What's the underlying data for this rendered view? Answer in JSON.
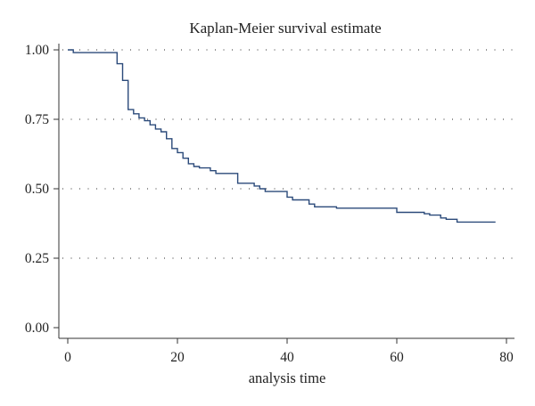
{
  "chart_data": {
    "type": "line",
    "title": "Kaplan-Meier survival estimate",
    "xlabel": "analysis time",
    "ylabel": "",
    "xlim": [
      0,
      80
    ],
    "ylim": [
      0,
      1
    ],
    "x_ticks": [
      0,
      20,
      40,
      60,
      80
    ],
    "y_ticks": [
      0,
      0.25,
      0.5,
      0.75,
      1.0
    ],
    "x_tick_labels": [
      "0",
      "20",
      "40",
      "60",
      "80"
    ],
    "y_tick_labels": [
      "0.00",
      "0.25",
      "0.50",
      "0.75",
      "1.00"
    ],
    "grid": "horizontal dotted",
    "line_color": "#2b4a7a",
    "step": true,
    "series": [
      {
        "x": [
          0,
          1,
          9,
          10,
          11,
          12,
          13,
          14,
          15,
          16,
          17,
          18,
          19,
          20,
          21,
          22,
          23,
          24,
          26,
          27,
          31,
          34,
          35,
          36,
          40,
          41,
          44,
          45,
          49,
          58,
          60,
          65,
          66,
          68,
          69,
          71,
          78
        ],
        "y": [
          1.0,
          0.99,
          0.95,
          0.89,
          0.785,
          0.77,
          0.755,
          0.745,
          0.73,
          0.715,
          0.705,
          0.68,
          0.645,
          0.63,
          0.61,
          0.59,
          0.58,
          0.575,
          0.565,
          0.555,
          0.52,
          0.51,
          0.5,
          0.49,
          0.47,
          0.46,
          0.445,
          0.435,
          0.43,
          0.43,
          0.415,
          0.41,
          0.405,
          0.395,
          0.39,
          0.38,
          0.38
        ]
      }
    ]
  }
}
